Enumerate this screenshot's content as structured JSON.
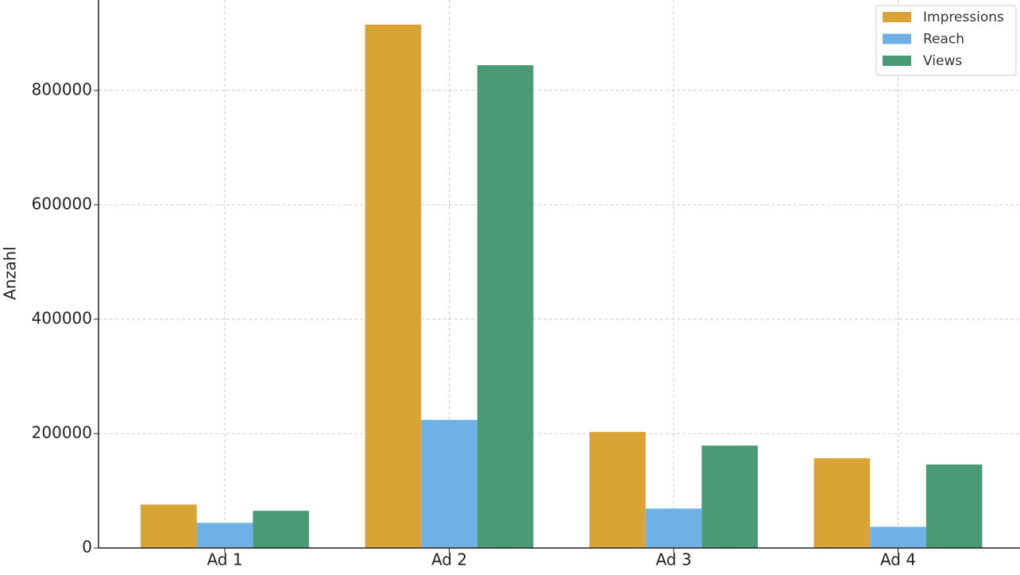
{
  "chart_data": {
    "type": "bar",
    "y_label": "Anzahl",
    "categories": [
      "Ad 1",
      "Ad 2",
      "Ad 3",
      "Ad 4"
    ],
    "series": [
      {
        "name": "Impressions",
        "color": "#daa336",
        "values": [
          76000,
          915000,
          203000,
          157000
        ]
      },
      {
        "name": "Reach",
        "color": "#6fb1e4",
        "values": [
          44000,
          224000,
          69000,
          37000
        ]
      },
      {
        "name": "Views",
        "color": "#4a9a76",
        "values": [
          65000,
          844000,
          179000,
          146000
        ]
      }
    ],
    "ylim": [
      0,
      958000
    ],
    "yticks": [
      0,
      200000,
      400000,
      600000,
      800000
    ],
    "grid": true,
    "legend": "upper right"
  }
}
